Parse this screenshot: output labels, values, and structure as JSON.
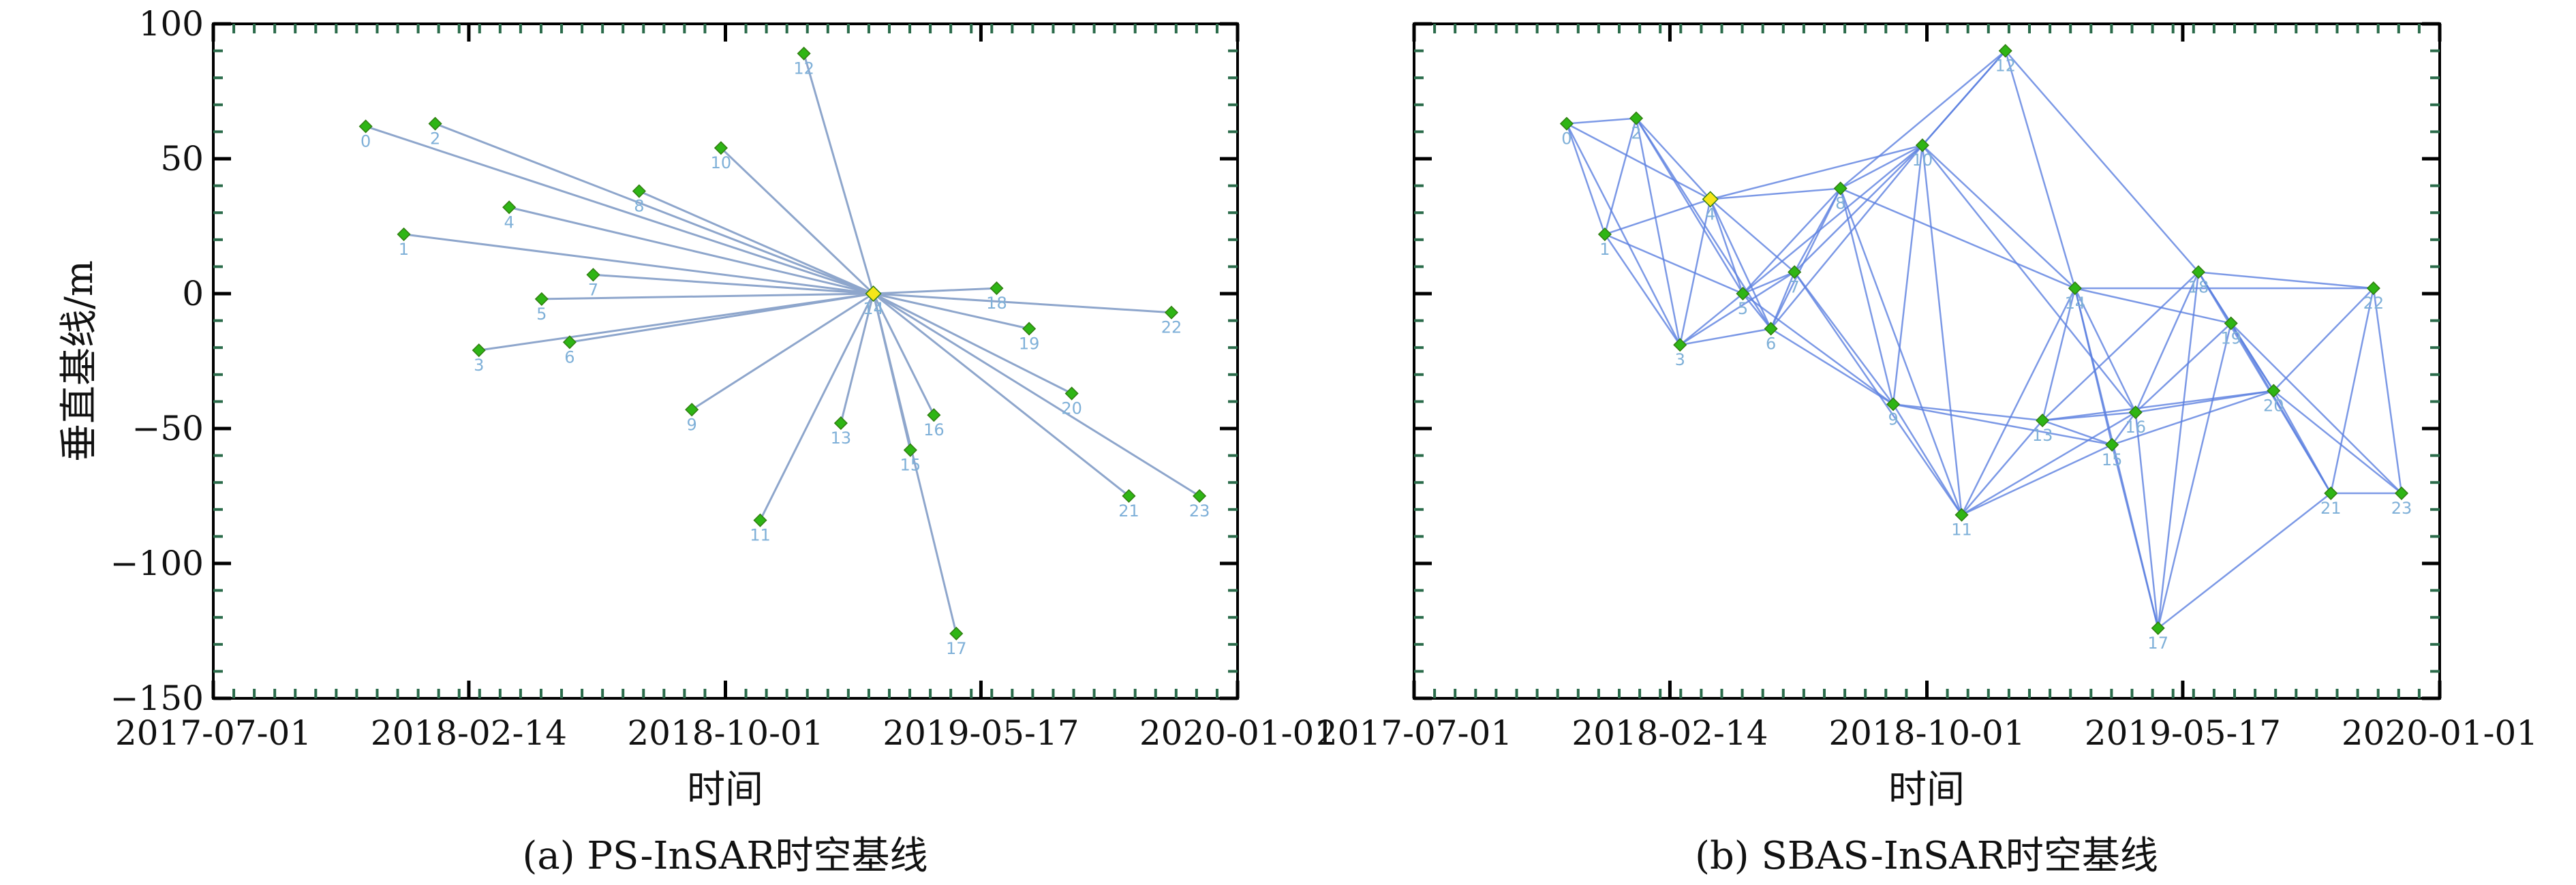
{
  "figure": {
    "ylabel": "垂直基线/m",
    "xlabel": "时间",
    "x_ticks": [
      "2017-07-01",
      "2018-02-14",
      "2018-10-01",
      "2019-05-17",
      "2020-01-01"
    ],
    "y_ticks": [
      100,
      50,
      0,
      -50,
      -100,
      -150
    ],
    "colors": {
      "point": "#2fb515",
      "master_point": "#f5e61a",
      "ps_edge": "#8ea6cc",
      "sbas_edge": "#5b7fe0",
      "label": "#7fb0d8"
    }
  },
  "chart_data": [
    {
      "type": "scatter",
      "caption": "(a) PS-InSAR时空基线",
      "xlabel": "时间",
      "ylabel": "垂直基线/m",
      "xlim": [
        "2017-07-01",
        "2020-01-01"
      ],
      "ylim": [
        -150,
        100
      ],
      "grid": false,
      "master_index": 14,
      "points": [
        {
          "id": "0",
          "date": "2017-11-14",
          "baseline": 62
        },
        {
          "id": "1",
          "date": "2017-12-18",
          "baseline": 22
        },
        {
          "id": "2",
          "date": "2018-01-15",
          "baseline": 63
        },
        {
          "id": "3",
          "date": "2018-02-23",
          "baseline": -21
        },
        {
          "id": "4",
          "date": "2018-03-22",
          "baseline": 32
        },
        {
          "id": "5",
          "date": "2018-04-20",
          "baseline": -2
        },
        {
          "id": "6",
          "date": "2018-05-15",
          "baseline": -18
        },
        {
          "id": "7",
          "date": "2018-06-05",
          "baseline": 7
        },
        {
          "id": "8",
          "date": "2018-07-16",
          "baseline": 38
        },
        {
          "id": "9",
          "date": "2018-09-01",
          "baseline": -43
        },
        {
          "id": "10",
          "date": "2018-09-27",
          "baseline": 54
        },
        {
          "id": "11",
          "date": "2018-11-01",
          "baseline": -84
        },
        {
          "id": "12",
          "date": "2018-12-10",
          "baseline": 89
        },
        {
          "id": "13",
          "date": "2019-01-12",
          "baseline": -48
        },
        {
          "id": "14",
          "date": "2019-02-10",
          "baseline": 0
        },
        {
          "id": "15",
          "date": "2019-03-15",
          "baseline": -58
        },
        {
          "id": "16",
          "date": "2019-04-05",
          "baseline": -45
        },
        {
          "id": "17",
          "date": "2019-04-25",
          "baseline": -126
        },
        {
          "id": "18",
          "date": "2019-05-31",
          "baseline": 2
        },
        {
          "id": "19",
          "date": "2019-06-29",
          "baseline": -13
        },
        {
          "id": "20",
          "date": "2019-08-06",
          "baseline": -37
        },
        {
          "id": "21",
          "date": "2019-09-26",
          "baseline": -75
        },
        {
          "id": "22",
          "date": "2019-11-03",
          "baseline": -7
        },
        {
          "id": "23",
          "date": "2019-11-28",
          "baseline": -75
        }
      ]
    },
    {
      "type": "scatter",
      "caption": "(b) SBAS-InSAR时空基线",
      "xlabel": "时间",
      "xlim": [
        "2017-07-01",
        "2020-01-01"
      ],
      "ylim": [
        -150,
        100
      ],
      "grid": false,
      "master_index": 4,
      "points": [
        {
          "id": "0",
          "date": "2017-11-14",
          "baseline": 63
        },
        {
          "id": "1",
          "date": "2017-12-18",
          "baseline": 22
        },
        {
          "id": "2",
          "date": "2018-01-15",
          "baseline": 65
        },
        {
          "id": "3",
          "date": "2018-02-23",
          "baseline": -19
        },
        {
          "id": "4",
          "date": "2018-03-22",
          "baseline": 35
        },
        {
          "id": "5",
          "date": "2018-04-20",
          "baseline": 0
        },
        {
          "id": "6",
          "date": "2018-05-15",
          "baseline": -13
        },
        {
          "id": "7",
          "date": "2018-06-05",
          "baseline": 8
        },
        {
          "id": "8",
          "date": "2018-07-16",
          "baseline": 39
        },
        {
          "id": "9",
          "date": "2018-09-01",
          "baseline": -41
        },
        {
          "id": "10",
          "date": "2018-09-27",
          "baseline": 55
        },
        {
          "id": "11",
          "date": "2018-11-01",
          "baseline": -82
        },
        {
          "id": "12",
          "date": "2018-12-10",
          "baseline": 90
        },
        {
          "id": "13",
          "date": "2019-01-12",
          "baseline": -47
        },
        {
          "id": "14",
          "date": "2019-02-10",
          "baseline": 2
        },
        {
          "id": "15",
          "date": "2019-03-15",
          "baseline": -56
        },
        {
          "id": "16",
          "date": "2019-04-05",
          "baseline": -44
        },
        {
          "id": "17",
          "date": "2019-04-25",
          "baseline": -124
        },
        {
          "id": "18",
          "date": "2019-05-31",
          "baseline": 8
        },
        {
          "id": "19",
          "date": "2019-06-29",
          "baseline": -11
        },
        {
          "id": "20",
          "date": "2019-08-06",
          "baseline": -36
        },
        {
          "id": "21",
          "date": "2019-09-26",
          "baseline": -74
        },
        {
          "id": "22",
          "date": "2019-11-03",
          "baseline": 2
        },
        {
          "id": "23",
          "date": "2019-11-28",
          "baseline": -74
        }
      ],
      "edges": [
        [
          0,
          1
        ],
        [
          0,
          2
        ],
        [
          0,
          3
        ],
        [
          0,
          4
        ],
        [
          1,
          2
        ],
        [
          1,
          3
        ],
        [
          1,
          4
        ],
        [
          1,
          5
        ],
        [
          2,
          3
        ],
        [
          2,
          4
        ],
        [
          2,
          5
        ],
        [
          2,
          6
        ],
        [
          3,
          4
        ],
        [
          3,
          5
        ],
        [
          3,
          6
        ],
        [
          3,
          7
        ],
        [
          4,
          5
        ],
        [
          4,
          6
        ],
        [
          4,
          7
        ],
        [
          4,
          8
        ],
        [
          4,
          10
        ],
        [
          5,
          6
        ],
        [
          5,
          7
        ],
        [
          5,
          8
        ],
        [
          5,
          9
        ],
        [
          5,
          10
        ],
        [
          6,
          7
        ],
        [
          6,
          8
        ],
        [
          6,
          9
        ],
        [
          6,
          10
        ],
        [
          7,
          8
        ],
        [
          7,
          9
        ],
        [
          7,
          10
        ],
        [
          7,
          11
        ],
        [
          8,
          9
        ],
        [
          8,
          10
        ],
        [
          8,
          11
        ],
        [
          8,
          12
        ],
        [
          8,
          14
        ],
        [
          9,
          10
        ],
        [
          9,
          11
        ],
        [
          9,
          13
        ],
        [
          9,
          15
        ],
        [
          10,
          11
        ],
        [
          10,
          12
        ],
        [
          10,
          14
        ],
        [
          10,
          16
        ],
        [
          11,
          13
        ],
        [
          11,
          14
        ],
        [
          11,
          15
        ],
        [
          11,
          16
        ],
        [
          12,
          14
        ],
        [
          12,
          18
        ],
        [
          12,
          10
        ],
        [
          13,
          14
        ],
        [
          13,
          15
        ],
        [
          13,
          16
        ],
        [
          13,
          18
        ],
        [
          13,
          20
        ],
        [
          14,
          15
        ],
        [
          14,
          16
        ],
        [
          14,
          17
        ],
        [
          14,
          19
        ],
        [
          14,
          22
        ],
        [
          15,
          16
        ],
        [
          15,
          17
        ],
        [
          15,
          20
        ],
        [
          16,
          17
        ],
        [
          16,
          18
        ],
        [
          16,
          19
        ],
        [
          16,
          20
        ],
        [
          17,
          18
        ],
        [
          17,
          19
        ],
        [
          17,
          21
        ],
        [
          18,
          19
        ],
        [
          18,
          20
        ],
        [
          18,
          21
        ],
        [
          18,
          22
        ],
        [
          19,
          20
        ],
        [
          19,
          21
        ],
        [
          19,
          23
        ],
        [
          20,
          21
        ],
        [
          20,
          22
        ],
        [
          20,
          23
        ],
        [
          21,
          22
        ],
        [
          21,
          23
        ],
        [
          22,
          23
        ]
      ]
    }
  ]
}
